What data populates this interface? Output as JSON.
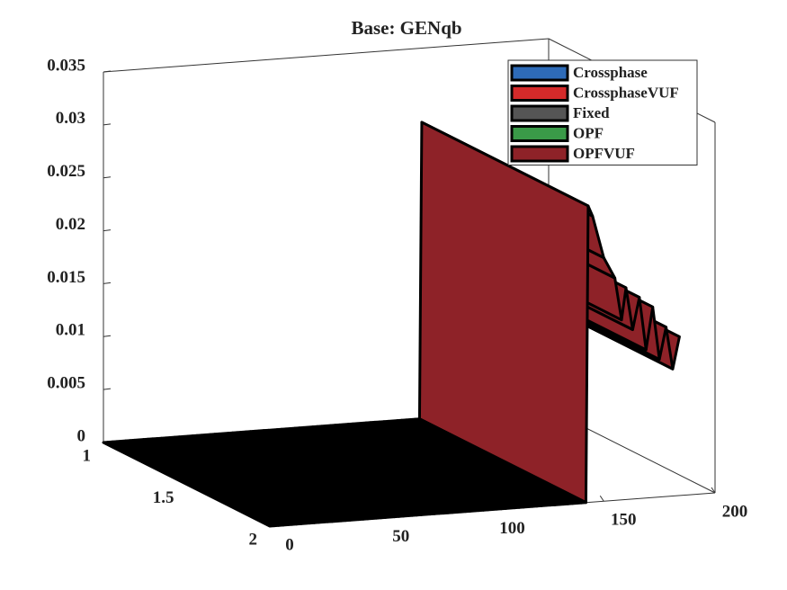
{
  "chart_data": {
    "type": "surface3d",
    "title": "Base: GENqb",
    "x": [
      0,
      2,
      4,
      6,
      8,
      10,
      12,
      14,
      16,
      18,
      20,
      22,
      24,
      26,
      28,
      30,
      32,
      34,
      36,
      38,
      40,
      42,
      44,
      46,
      48,
      50,
      52,
      54,
      56,
      58,
      60,
      62,
      64,
      66,
      68,
      70,
      72,
      74,
      76,
      78,
      80,
      82,
      84,
      86,
      88,
      90,
      92,
      94,
      96,
      98,
      100,
      102,
      104,
      106,
      108,
      110,
      112,
      114,
      116,
      118,
      120,
      122,
      124,
      126,
      128,
      130,
      132,
      134,
      136,
      138,
      140,
      142,
      143,
      145,
      150,
      155,
      158,
      160,
      163,
      166,
      169,
      172,
      175,
      178,
      181,
      184
    ],
    "series": [
      {
        "name": "Crossphase",
        "color": "#2e6bb8"
      },
      {
        "name": "CrossphaseVUF",
        "color": "#d42a2a"
      },
      {
        "name": "Fixed",
        "color": "#555555"
      },
      {
        "name": "OPF",
        "color": "#3a9a48"
      },
      {
        "name": "OPFVUF",
        "color": "#8e2228",
        "values": [
          0,
          0,
          0,
          0,
          0,
          0,
          0,
          0,
          0,
          0,
          0,
          0,
          0,
          0,
          0,
          0,
          0,
          0,
          0,
          0,
          0,
          0,
          0,
          0,
          0,
          0,
          0,
          0,
          0,
          0,
          0,
          0,
          0,
          0,
          0,
          0,
          0,
          0,
          0,
          0,
          0,
          0,
          0,
          0,
          0,
          0,
          0,
          0,
          0,
          0,
          0,
          0,
          0,
          0,
          0,
          0,
          0,
          0,
          0,
          0,
          0,
          0,
          0,
          0,
          0,
          0,
          0,
          0,
          0,
          0,
          0,
          0,
          0.028,
          0.027,
          0.023,
          0.021,
          0.017,
          0.02,
          0.016,
          0.019,
          0.014,
          0.018,
          0.013,
          0.016,
          0.012,
          0.015
        ]
      }
    ],
    "xlim": [
      0,
      200
    ],
    "xticks": [
      0,
      50,
      100,
      150,
      200
    ],
    "ylim": [
      1,
      2
    ],
    "yticks": [
      1,
      1.5,
      2
    ],
    "zlim": [
      0,
      0.035
    ],
    "zticks": [
      0,
      0.005,
      0.01,
      0.015,
      0.02,
      0.025,
      0.03,
      0.035
    ],
    "legend": "upper right"
  }
}
